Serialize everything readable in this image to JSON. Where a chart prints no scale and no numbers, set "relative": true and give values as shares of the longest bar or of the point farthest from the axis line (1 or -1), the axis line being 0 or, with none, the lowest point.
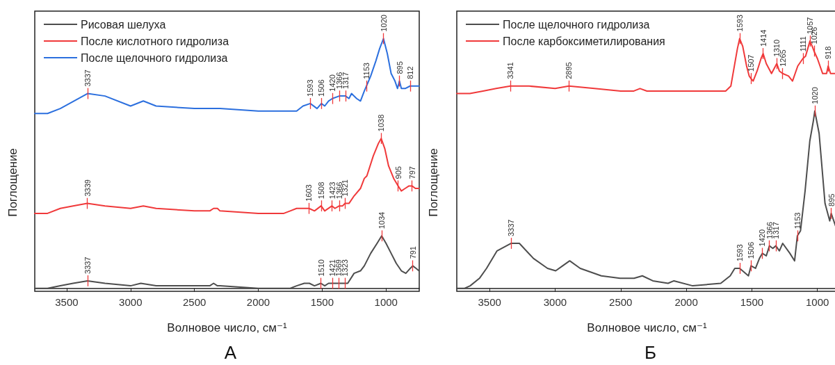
{
  "chart_data": [
    {
      "type": "line",
      "title": "А",
      "xlabel": "Волновое число, см⁻¹",
      "ylabel": "Поглощение",
      "relative": true,
      "xlim": [
        3750,
        740
      ],
      "xticks": [
        3500,
        3000,
        2500,
        2000,
        1500,
        1000
      ],
      "grid": false,
      "legend": "top left",
      "marker": "none",
      "line_style": "solid",
      "series": [
        {
          "name": "Рисовая шелуха",
          "color": "#4d4d4d",
          "x": [
            3750,
            3650,
            3550,
            3450,
            3337,
            3200,
            3000,
            2920,
            2800,
            2500,
            2380,
            2350,
            2320,
            2300,
            2000,
            1800,
            1750,
            1700,
            1640,
            1600,
            1560,
            1510,
            1480,
            1450,
            1421,
            1369,
            1323,
            1300,
            1250,
            1200,
            1170,
            1120,
            1070,
            1034,
            1000,
            960,
            920,
            880,
            845,
            810,
            791,
            765,
            742
          ],
          "values": [
            0.0,
            0.0,
            0.01,
            0.02,
            0.03,
            0.02,
            0.01,
            0.02,
            0.01,
            0.01,
            0.01,
            0.02,
            0.01,
            0.01,
            0.0,
            0.0,
            0.0,
            0.01,
            0.02,
            0.02,
            0.01,
            0.02,
            0.01,
            0.02,
            0.02,
            0.02,
            0.02,
            0.02,
            0.06,
            0.07,
            0.09,
            0.14,
            0.18,
            0.21,
            0.18,
            0.14,
            0.1,
            0.07,
            0.06,
            0.08,
            0.09,
            0.08,
            0.07
          ]
        },
        {
          "name": "После кислотного гидролиза",
          "color": "#f0393a",
          "x": [
            3750,
            3650,
            3550,
            3450,
            3339,
            3200,
            3000,
            2900,
            2800,
            2500,
            2380,
            2350,
            2320,
            2300,
            2000,
            1800,
            1750,
            1700,
            1650,
            1603,
            1560,
            1508,
            1480,
            1423,
            1400,
            1366,
            1340,
            1321,
            1290,
            1250,
            1200,
            1170,
            1150,
            1100,
            1060,
            1038,
            1010,
            980,
            940,
            905,
            880,
            850,
            820,
            797,
            770,
            742
          ],
          "values": [
            0.3,
            0.3,
            0.32,
            0.33,
            0.34,
            0.33,
            0.32,
            0.33,
            0.32,
            0.31,
            0.31,
            0.32,
            0.32,
            0.31,
            0.3,
            0.3,
            0.31,
            0.32,
            0.32,
            0.32,
            0.31,
            0.33,
            0.31,
            0.33,
            0.32,
            0.33,
            0.33,
            0.34,
            0.34,
            0.37,
            0.4,
            0.44,
            0.45,
            0.53,
            0.58,
            0.6,
            0.56,
            0.49,
            0.44,
            0.41,
            0.39,
            0.4,
            0.41,
            0.41,
            0.4,
            0.4
          ]
        },
        {
          "name": "После щелочного гидролиза",
          "color": "#2b6fde",
          "x": [
            3750,
            3650,
            3550,
            3337,
            3200,
            3000,
            2900,
            2800,
            2500,
            2350,
            2330,
            2300,
            2000,
            1800,
            1700,
            1650,
            1593,
            1540,
            1506,
            1480,
            1450,
            1420,
            1366,
            1340,
            1317,
            1290,
            1270,
            1230,
            1200,
            1170,
            1153,
            1120,
            1080,
            1050,
            1020,
            990,
            960,
            930,
            910,
            895,
            880,
            850,
            812,
            770,
            742
          ],
          "values": [
            0.7,
            0.7,
            0.72,
            0.78,
            0.77,
            0.73,
            0.75,
            0.73,
            0.72,
            0.72,
            0.72,
            0.72,
            0.71,
            0.71,
            0.71,
            0.73,
            0.74,
            0.72,
            0.74,
            0.73,
            0.75,
            0.76,
            0.77,
            0.77,
            0.77,
            0.76,
            0.78,
            0.76,
            0.75,
            0.79,
            0.81,
            0.85,
            0.91,
            0.96,
            1.0,
            0.94,
            0.86,
            0.83,
            0.8,
            0.83,
            0.8,
            0.8,
            0.81,
            0.81,
            0.81
          ]
        }
      ],
      "annotations": [
        {
          "text": "3337",
          "x": 3337,
          "y": 0.78
        },
        {
          "text": "1593",
          "x": 1593,
          "y": 0.74
        },
        {
          "text": "1506",
          "x": 1506,
          "y": 0.74
        },
        {
          "text": "1420",
          "x": 1420,
          "y": 0.76
        },
        {
          "text": "1366",
          "x": 1366,
          "y": 0.77
        },
        {
          "text": "1317",
          "x": 1317,
          "y": 0.77
        },
        {
          "text": "1153",
          "x": 1153,
          "y": 0.81
        },
        {
          "text": "1020",
          "x": 1020,
          "y": 1.0
        },
        {
          "text": "895",
          "x": 895,
          "y": 0.83
        },
        {
          "text": "812",
          "x": 812,
          "y": 0.81
        },
        {
          "text": "3339",
          "x": 3339,
          "y": 0.34
        },
        {
          "text": "1603",
          "x": 1603,
          "y": 0.32
        },
        {
          "text": "1508",
          "x": 1508,
          "y": 0.33
        },
        {
          "text": "1423",
          "x": 1423,
          "y": 0.33
        },
        {
          "text": "1366",
          "x": 1366,
          "y": 0.33
        },
        {
          "text": "1321",
          "x": 1321,
          "y": 0.34
        },
        {
          "text": "1038",
          "x": 1038,
          "y": 0.6
        },
        {
          "text": "905",
          "x": 905,
          "y": 0.41
        },
        {
          "text": "797",
          "x": 797,
          "y": 0.41
        },
        {
          "text": "3337",
          "x": 3337,
          "y": 0.03
        },
        {
          "text": "1510",
          "x": 1510,
          "y": 0.02
        },
        {
          "text": "1421",
          "x": 1421,
          "y": 0.02
        },
        {
          "text": "1369",
          "x": 1369,
          "y": 0.02
        },
        {
          "text": "1323",
          "x": 1323,
          "y": 0.02
        },
        {
          "text": "1034",
          "x": 1034,
          "y": 0.21
        },
        {
          "text": "791",
          "x": 791,
          "y": 0.09
        }
      ]
    },
    {
      "type": "line",
      "title": "Б",
      "xlabel": "Волновое число, см⁻¹",
      "ylabel": "Поглощение",
      "relative": true,
      "xlim": [
        3750,
        850
      ],
      "xticks": [
        3500,
        3000,
        2500,
        2000,
        1500,
        1000
      ],
      "grid": false,
      "legend": "top left",
      "marker": "none",
      "line_style": "solid",
      "series": [
        {
          "name": "После щелочного гидролиза",
          "color": "#4d4d4d",
          "x": [
            3750,
            3690,
            3648,
            3577,
            3523,
            3443,
            3337,
            3273,
            3166,
            3058,
            2996,
            2943,
            2889,
            2809,
            2648,
            2505,
            2398,
            2335,
            2255,
            2139,
            2094,
            1951,
            1737,
            1665,
            1630,
            1593,
            1526,
            1506,
            1472,
            1442,
            1420,
            1390,
            1366,
            1340,
            1317,
            1290,
            1265,
            1210,
            1174,
            1153,
            1129,
            1094,
            1058,
            1031,
            1020,
            987,
            942,
            906,
            895,
            862
          ],
          "values": [
            0.0,
            0.0,
            0.01,
            0.04,
            0.08,
            0.15,
            0.18,
            0.18,
            0.12,
            0.08,
            0.07,
            0.09,
            0.11,
            0.08,
            0.05,
            0.04,
            0.04,
            0.05,
            0.03,
            0.02,
            0.03,
            0.01,
            0.02,
            0.05,
            0.08,
            0.08,
            0.05,
            0.09,
            0.08,
            0.12,
            0.14,
            0.13,
            0.17,
            0.16,
            0.17,
            0.15,
            0.18,
            0.14,
            0.11,
            0.21,
            0.23,
            0.39,
            0.59,
            0.67,
            0.71,
            0.62,
            0.34,
            0.27,
            0.3,
            0.25
          ]
        },
        {
          "name": "После карбоксиметилирования",
          "color": "#f0393a",
          "x": [
            3750,
            3650,
            3550,
            3450,
            3341,
            3200,
            3000,
            2895,
            2700,
            2500,
            2400,
            2353,
            2300,
            2100,
            1900,
            1700,
            1660,
            1630,
            1610,
            1593,
            1570,
            1540,
            1520,
            1507,
            1490,
            1460,
            1430,
            1414,
            1390,
            1350,
            1310,
            1290,
            1265,
            1220,
            1190,
            1150,
            1111,
            1090,
            1057,
            1040,
            1026,
            1000,
            960,
            930,
            918,
            900,
            870,
            850
          ],
          "values": [
            0.78,
            0.78,
            0.79,
            0.8,
            0.81,
            0.81,
            0.8,
            0.81,
            0.8,
            0.79,
            0.79,
            0.8,
            0.79,
            0.79,
            0.79,
            0.79,
            0.81,
            0.9,
            0.96,
            1.0,
            0.97,
            0.89,
            0.85,
            0.84,
            0.83,
            0.87,
            0.92,
            0.94,
            0.9,
            0.86,
            0.9,
            0.87,
            0.86,
            0.85,
            0.83,
            0.89,
            0.92,
            0.93,
            0.99,
            0.97,
            0.95,
            0.92,
            0.86,
            0.86,
            0.89,
            0.86,
            0.86,
            0.86
          ]
        }
      ],
      "annotations": [
        {
          "text": "3341",
          "x": 3341,
          "y": 0.81
        },
        {
          "text": "2895",
          "x": 2895,
          "y": 0.81
        },
        {
          "text": "1593",
          "x": 1593,
          "y": 1.0
        },
        {
          "text": "1507",
          "x": 1507,
          "y": 0.84
        },
        {
          "text": "1414",
          "x": 1414,
          "y": 0.94
        },
        {
          "text": "1310",
          "x": 1310,
          "y": 0.9
        },
        {
          "text": "1265",
          "x": 1265,
          "y": 0.86
        },
        {
          "text": "1111",
          "x": 1111,
          "y": 0.92
        },
        {
          "text": "1057",
          "x": 1057,
          "y": 0.99
        },
        {
          "text": "1026",
          "x": 1026,
          "y": 0.95
        },
        {
          "text": "918",
          "x": 918,
          "y": 0.89
        },
        {
          "text": "3337",
          "x": 3337,
          "y": 0.18
        },
        {
          "text": "1593",
          "x": 1593,
          "y": 0.08
        },
        {
          "text": "1506",
          "x": 1506,
          "y": 0.09
        },
        {
          "text": "1420",
          "x": 1420,
          "y": 0.14
        },
        {
          "text": "1366",
          "x": 1366,
          "y": 0.17
        },
        {
          "text": "1317",
          "x": 1317,
          "y": 0.17
        },
        {
          "text": "1153",
          "x": 1153,
          "y": 0.21
        },
        {
          "text": "1020",
          "x": 1020,
          "y": 0.71
        },
        {
          "text": "895",
          "x": 895,
          "y": 0.3
        }
      ]
    }
  ]
}
